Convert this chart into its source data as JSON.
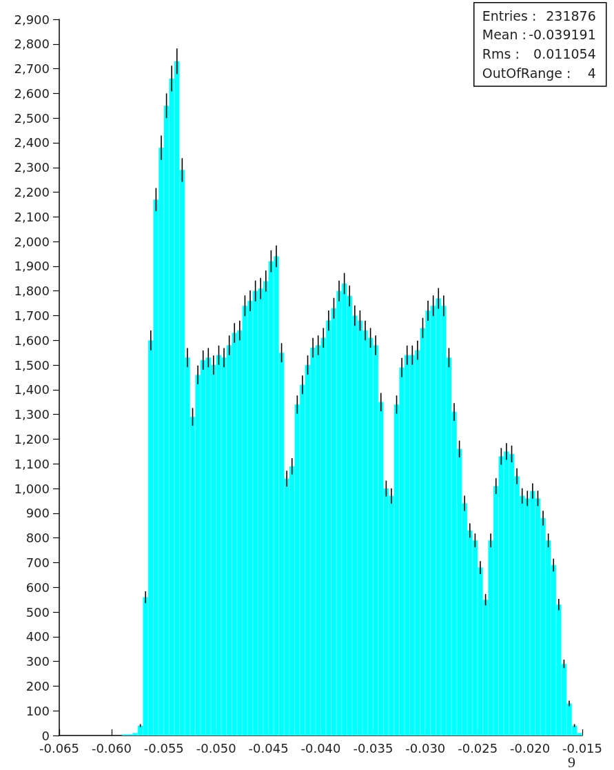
{
  "chart_data": {
    "type": "histogram",
    "color": "#00ffff",
    "bins": [
      -0.059,
      -0.0585,
      -0.058,
      -0.0575,
      -0.057,
      -0.0565,
      -0.056,
      -0.0555,
      -0.055,
      -0.0545,
      -0.054,
      -0.0535,
      -0.053,
      -0.0525,
      -0.052,
      -0.0515,
      -0.051,
      -0.0505,
      -0.05,
      -0.0495,
      -0.049,
      -0.0485,
      -0.048,
      -0.0475,
      -0.047,
      -0.0465,
      -0.046,
      -0.0455,
      -0.045,
      -0.0445,
      -0.044,
      -0.0435,
      -0.043,
      -0.0425,
      -0.042,
      -0.0415,
      -0.041,
      -0.0405,
      -0.04,
      -0.0395,
      -0.039,
      -0.0385,
      -0.038,
      -0.0375,
      -0.037,
      -0.0365,
      -0.036,
      -0.0355,
      -0.035,
      -0.0345,
      -0.034,
      -0.0335,
      -0.033,
      -0.0325,
      -0.032,
      -0.0315,
      -0.031,
      -0.0305,
      -0.03,
      -0.0295,
      -0.029,
      -0.0285,
      -0.028,
      -0.0275,
      -0.027,
      -0.0265,
      -0.026,
      -0.0255,
      -0.025,
      -0.0245,
      -0.024,
      -0.0235,
      -0.023,
      -0.0225,
      -0.022,
      -0.0215,
      -0.021,
      -0.0205,
      -0.02,
      -0.0195,
      -0.019,
      -0.0185,
      -0.018,
      -0.0175,
      -0.017,
      -0.0165,
      -0.016,
      -0.0155,
      -0.015
    ],
    "values": [
      5,
      5,
      10,
      40,
      560,
      1600,
      2170,
      2380,
      2550,
      2660,
      2730,
      2290,
      1530,
      1290,
      1460,
      1520,
      1530,
      1500,
      1540,
      1530,
      1580,
      1630,
      1640,
      1740,
      1760,
      1800,
      1810,
      1840,
      1920,
      1940,
      1550,
      1040,
      1090,
      1340,
      1420,
      1500,
      1570,
      1580,
      1610,
      1680,
      1730,
      1800,
      1830,
      1780,
      1700,
      1680,
      1640,
      1610,
      1580,
      1350,
      1000,
      970,
      1340,
      1490,
      1540,
      1540,
      1560,
      1650,
      1720,
      1740,
      1770,
      1740,
      1530,
      1310,
      1160,
      940,
      830,
      790,
      680,
      550,
      790,
      1010,
      1130,
      1150,
      1140,
      1050,
      970,
      960,
      990,
      960,
      880,
      790,
      690,
      530,
      290,
      130,
      40,
      10
    ],
    "errors": [
      null,
      null,
      null,
      6,
      24,
      40,
      47,
      49,
      50,
      52,
      52,
      48,
      39,
      36,
      38,
      39,
      39,
      39,
      39,
      39,
      40,
      40,
      40,
      42,
      42,
      42,
      43,
      43,
      44,
      44,
      39,
      32,
      33,
      37,
      38,
      39,
      40,
      40,
      40,
      41,
      42,
      42,
      43,
      42,
      41,
      41,
      40,
      40,
      40,
      37,
      32,
      31,
      37,
      39,
      39,
      39,
      39,
      41,
      41,
      42,
      42,
      42,
      39,
      36,
      34,
      31,
      29,
      28,
      26,
      23,
      28,
      32,
      34,
      34,
      34,
      32,
      31,
      31,
      31,
      31,
      30,
      28,
      26,
      23,
      17,
      11,
      6,
      null
    ],
    "xlim": [
      -0.065,
      -0.015
    ],
    "xticks": [
      -0.065,
      {
        "value": -0.06,
        "label": "-0.060"
      },
      -0.055,
      {
        "value": -0.05,
        "label": "-0.050"
      },
      -0.045,
      {
        "value": -0.04,
        "label": "-0.040"
      },
      -0.035,
      {
        "value": -0.03,
        "label": "-0.030"
      },
      -0.025,
      {
        "value": -0.02,
        "label": "-0.020"
      },
      -0.015
    ],
    "ylim": [
      0,
      2900
    ],
    "yticks": [
      0,
      100,
      200,
      300,
      400,
      500,
      600,
      700,
      800,
      900,
      {
        "value": 1000,
        "label": "1,000"
      },
      {
        "value": 1100,
        "label": "1,100"
      },
      {
        "value": 1200,
        "label": "1,200"
      },
      {
        "value": 1300,
        "label": "1,300"
      },
      {
        "value": 1400,
        "label": "1,400"
      },
      {
        "value": 1500,
        "label": "1,500"
      },
      {
        "value": 1600,
        "label": "1,600"
      },
      {
        "value": 1700,
        "label": "1,700"
      },
      {
        "value": 1800,
        "label": "1,800"
      },
      {
        "value": 1900,
        "label": "1,900"
      },
      {
        "value": 2000,
        "label": "2,000"
      },
      {
        "value": 2100,
        "label": "2,100"
      },
      {
        "value": 2200,
        "label": "2,200"
      },
      {
        "value": 2300,
        "label": "2,300"
      },
      {
        "value": 2400,
        "label": "2,400"
      },
      {
        "value": 2500,
        "label": "2,500"
      },
      {
        "value": 2600,
        "label": "2,600"
      },
      {
        "value": 2700,
        "label": "2,700"
      },
      {
        "value": 2800,
        "label": "2,800"
      },
      {
        "value": 2900,
        "label": "2,900"
      }
    ],
    "annotations": [
      "Entries : 231876",
      "Mean : -0.039191",
      "Rms : 0.011054",
      "OutOfRange : 4",
      "9"
    ]
  }
}
